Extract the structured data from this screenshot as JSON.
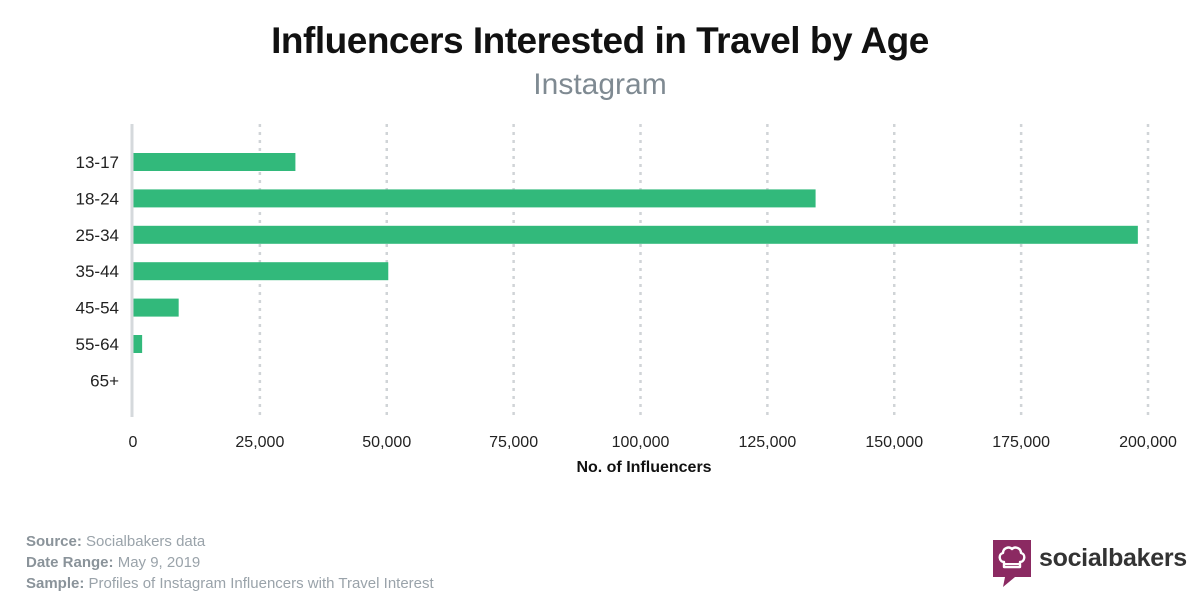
{
  "chart_data": {
    "type": "bar",
    "orientation": "horizontal",
    "title": "Influencers Interested in Travel by Age",
    "subtitle": "Instagram",
    "categories": [
      "13-17",
      "18-24",
      "25-34",
      "35-44",
      "45-54",
      "55-64",
      "65+"
    ],
    "values": [
      32000,
      134500,
      198000,
      50300,
      9000,
      1800,
      0
    ],
    "xlabel": "No. of Influencers",
    "ylabel": "",
    "xlim": [
      0,
      200000
    ],
    "x_ticks": [
      0,
      25000,
      50000,
      75000,
      100000,
      125000,
      150000,
      175000,
      200000
    ],
    "x_tick_labels": [
      "0",
      "25,000",
      "50,000",
      "75,000",
      "100,000",
      "125,000",
      "150,000",
      "175,000",
      "200,000"
    ],
    "grid": "vertical-dotted",
    "bar_color": "#32b97b"
  },
  "footer": {
    "source_label": "Source:",
    "source_value": "Socialbakers data",
    "date_label": "Date Range:",
    "date_value": "May 9, 2019",
    "sample_label": "Sample:",
    "sample_value": "Profiles of Instagram Influencers with Travel Interest"
  },
  "brand": {
    "name": "socialbakers",
    "icon": "chef-hat-icon",
    "color": "#8b2a62"
  }
}
